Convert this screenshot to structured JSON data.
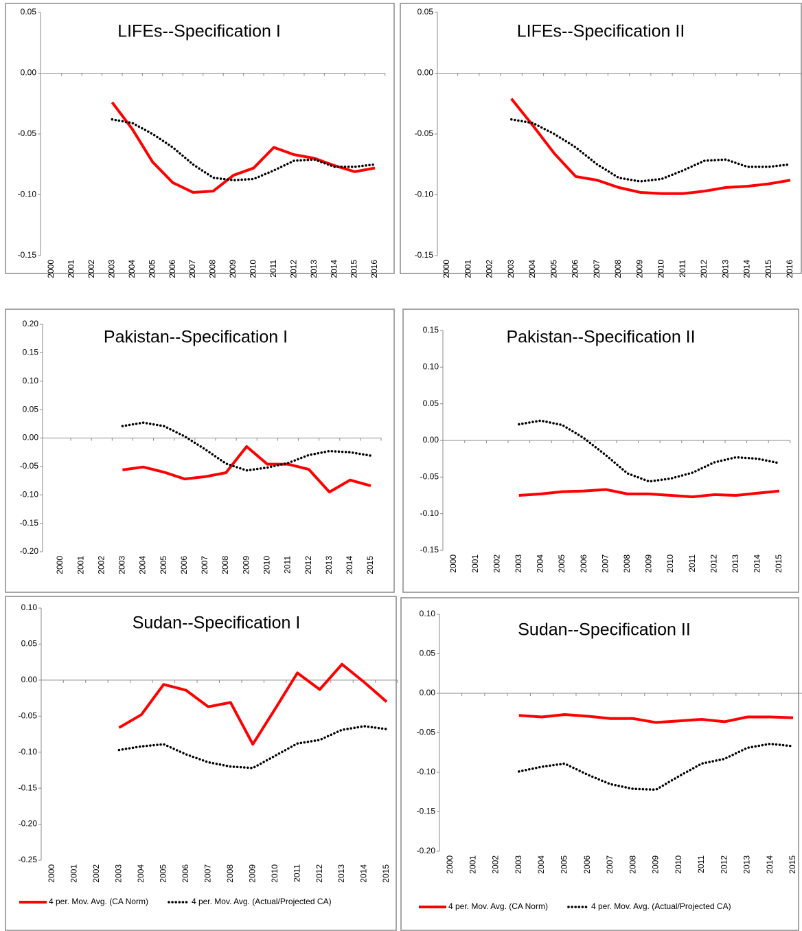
{
  "chart_data": [
    {
      "type": "line",
      "title": "LIFEs--Specification I",
      "categories": [
        "2000",
        "2001",
        "2002",
        "2003",
        "2004",
        "2005",
        "2006",
        "2007",
        "2008",
        "2009",
        "2010",
        "2011",
        "2012",
        "2013",
        "2014",
        "2015",
        "2016"
      ],
      "ylim": [
        -0.15,
        0.05
      ],
      "yticks": [
        {
          "value": -0.15,
          "label": "-0.15"
        },
        {
          "value": -0.1,
          "label": "-0.10"
        },
        {
          "value": -0.05,
          "label": "-0.05"
        },
        {
          "value": 0,
          "label": "0.00"
        },
        {
          "value": 0.05,
          "label": "0.05"
        }
      ],
      "series": [
        {
          "name": "4 per. Mov. Avg. (CA Norm)",
          "color": "#ff0000",
          "values": [
            null,
            null,
            null,
            -0.024,
            -0.046,
            -0.073,
            -0.09,
            -0.098,
            -0.097,
            -0.084,
            -0.078,
            -0.061,
            -0.067,
            -0.07,
            -0.076,
            -0.081,
            -0.078
          ]
        },
        {
          "name": "4 per. Mov. Avg. (Actual/Projected CA)",
          "color": "#000000",
          "values": [
            null,
            null,
            null,
            -0.038,
            -0.041,
            -0.05,
            -0.061,
            -0.075,
            -0.086,
            -0.088,
            -0.087,
            -0.08,
            -0.072,
            -0.071,
            -0.077,
            -0.077,
            -0.075
          ]
        }
      ]
    },
    {
      "type": "line",
      "title": "LIFEs--Specification II",
      "categories": [
        "2000",
        "2001",
        "2002",
        "2003",
        "2004",
        "2005",
        "2006",
        "2007",
        "2008",
        "2009",
        "2010",
        "2011",
        "2012",
        "2013",
        "2014",
        "2015",
        "2016"
      ],
      "ylim": [
        -0.15,
        0.05
      ],
      "yticks": [
        {
          "value": -0.15,
          "label": "-0.15"
        },
        {
          "value": -0.1,
          "label": "-0.10"
        },
        {
          "value": -0.05,
          "label": "-0.05"
        },
        {
          "value": 0,
          "label": "0.00"
        },
        {
          "value": 0.05,
          "label": "0.05"
        }
      ],
      "series": [
        {
          "name": "4 per. Mov. Avg. (CA Norm)",
          "color": "#ff0000",
          "values": [
            null,
            null,
            null,
            -0.021,
            -0.043,
            -0.066,
            -0.085,
            -0.088,
            -0.094,
            -0.098,
            -0.099,
            -0.099,
            -0.097,
            -0.094,
            -0.093,
            -0.091,
            -0.088
          ]
        },
        {
          "name": "4 per. Mov. Avg. (Actual/Projected CA)",
          "color": "#000000",
          "values": [
            null,
            null,
            null,
            -0.038,
            -0.041,
            -0.05,
            -0.061,
            -0.075,
            -0.086,
            -0.089,
            -0.087,
            -0.08,
            -0.072,
            -0.071,
            -0.077,
            -0.077,
            -0.075
          ]
        }
      ]
    },
    {
      "type": "line",
      "title": "Pakistan--Specification I",
      "categories": [
        "2000",
        "2001",
        "2002",
        "2003",
        "2004",
        "2005",
        "2006",
        "2007",
        "2008",
        "2009",
        "2010",
        "2011",
        "2012",
        "2013",
        "2014",
        "2015"
      ],
      "ylim": [
        -0.2,
        0.2
      ],
      "yticks": [
        {
          "value": -0.2,
          "label": "-0.20"
        },
        {
          "value": -0.15,
          "label": "-0.15"
        },
        {
          "value": -0.1,
          "label": "-0.10"
        },
        {
          "value": -0.05,
          "label": "-0.05"
        },
        {
          "value": 0,
          "label": "0.00"
        },
        {
          "value": 0.05,
          "label": "0.05"
        },
        {
          "value": 0.1,
          "label": "0.10"
        },
        {
          "value": 0.15,
          "label": "0.15"
        },
        {
          "value": 0.2,
          "label": "0.20"
        }
      ],
      "series": [
        {
          "name": "4 per. Mov. Avg. (CA Norm)",
          "color": "#ff0000",
          "values": [
            null,
            null,
            null,
            -0.056,
            -0.051,
            -0.06,
            -0.072,
            -0.068,
            -0.061,
            -0.015,
            -0.046,
            -0.046,
            -0.055,
            -0.095,
            -0.074,
            -0.084
          ]
        },
        {
          "name": "4 per. Mov. Avg. (Actual/Projected CA)",
          "color": "#000000",
          "values": [
            null,
            null,
            null,
            0.021,
            0.027,
            0.021,
            0.003,
            -0.02,
            -0.045,
            -0.057,
            -0.052,
            -0.044,
            -0.03,
            -0.023,
            -0.025,
            -0.031
          ]
        }
      ]
    },
    {
      "type": "line",
      "title": "Pakistan--Specification II",
      "categories": [
        "2000",
        "2001",
        "2002",
        "2003",
        "2004",
        "2005",
        "2006",
        "2007",
        "2008",
        "2009",
        "2010",
        "2011",
        "2012",
        "2013",
        "2014",
        "2015"
      ],
      "ylim": [
        -0.15,
        0.15
      ],
      "yticks": [
        {
          "value": -0.15,
          "label": "-0.15"
        },
        {
          "value": -0.1,
          "label": "-0.10"
        },
        {
          "value": -0.05,
          "label": "-0.05"
        },
        {
          "value": 0,
          "label": "0.00"
        },
        {
          "value": 0.05,
          "label": "0.05"
        },
        {
          "value": 0.1,
          "label": "0.10"
        },
        {
          "value": 0.15,
          "label": "0.15"
        }
      ],
      "series": [
        {
          "name": "4 per. Mov. Avg. (CA Norm)",
          "color": "#ff0000",
          "values": [
            null,
            null,
            null,
            -0.075,
            -0.073,
            -0.07,
            -0.069,
            -0.067,
            -0.073,
            -0.073,
            -0.075,
            -0.077,
            -0.074,
            -0.075,
            -0.072,
            -0.069
          ]
        },
        {
          "name": "4 per. Mov. Avg. (Actual/Projected CA)",
          "color": "#000000",
          "values": [
            null,
            null,
            null,
            0.022,
            0.027,
            0.021,
            0.003,
            -0.02,
            -0.045,
            -0.056,
            -0.052,
            -0.044,
            -0.03,
            -0.023,
            -0.025,
            -0.031
          ]
        }
      ]
    },
    {
      "type": "line",
      "title": "Sudan--Specification I",
      "categories": [
        "2000",
        "2001",
        "2002",
        "2003",
        "2004",
        "2005",
        "2006",
        "2007",
        "2008",
        "2009",
        "2010",
        "2011",
        "2012",
        "2013",
        "2014",
        "2015"
      ],
      "ylim": [
        -0.25,
        0.1
      ],
      "yticks": [
        {
          "value": -0.25,
          "label": "-0.25"
        },
        {
          "value": -0.2,
          "label": "-0.20"
        },
        {
          "value": -0.15,
          "label": "-0.15"
        },
        {
          "value": -0.1,
          "label": "-0.10"
        },
        {
          "value": -0.05,
          "label": "-0.05"
        },
        {
          "value": 0,
          "label": "0.00"
        },
        {
          "value": 0.05,
          "label": "0.05"
        },
        {
          "value": 0.1,
          "label": "0.10"
        }
      ],
      "legend": true,
      "series": [
        {
          "name": "4 per. Mov. Avg. (CA Norm)",
          "color": "#ff0000",
          "values": [
            null,
            null,
            null,
            -0.066,
            -0.048,
            -0.006,
            -0.014,
            -0.037,
            -0.031,
            -0.089,
            -0.04,
            0.01,
            -0.013,
            0.022,
            -0.003,
            -0.03
          ]
        },
        {
          "name": "4 per. Mov. Avg. (Actual/Projected CA)",
          "color": "#000000",
          "values": [
            null,
            null,
            null,
            -0.097,
            -0.092,
            -0.089,
            -0.103,
            -0.114,
            -0.12,
            -0.122,
            -0.105,
            -0.088,
            -0.083,
            -0.069,
            -0.064,
            -0.068
          ]
        }
      ]
    },
    {
      "type": "line",
      "title": "Sudan--Specification II",
      "categories": [
        "2000",
        "2001",
        "2002",
        "2003",
        "2004",
        "2005",
        "2006",
        "2007",
        "2008",
        "2009",
        "2010",
        "2011",
        "2012",
        "2013",
        "2014",
        "2015"
      ],
      "ylim": [
        -0.2,
        0.1
      ],
      "yticks": [
        {
          "value": -0.2,
          "label": "-0.20"
        },
        {
          "value": -0.15,
          "label": "-0.15"
        },
        {
          "value": -0.1,
          "label": "-0.10"
        },
        {
          "value": -0.05,
          "label": "-0.05"
        },
        {
          "value": 0,
          "label": "0.00"
        },
        {
          "value": 0.05,
          "label": "0.05"
        },
        {
          "value": 0.1,
          "label": "0.10"
        }
      ],
      "legend": true,
      "series": [
        {
          "name": "4 per. Mov. Avg. (CA Norm)",
          "color": "#ff0000",
          "values": [
            null,
            null,
            null,
            -0.028,
            -0.03,
            -0.027,
            -0.029,
            -0.032,
            -0.032,
            -0.037,
            -0.035,
            -0.033,
            -0.036,
            -0.03,
            -0.03,
            -0.031
          ]
        },
        {
          "name": "4 per. Mov. Avg. (Actual/Projected CA)",
          "color": "#000000",
          "values": [
            null,
            null,
            null,
            -0.099,
            -0.093,
            -0.089,
            -0.103,
            -0.115,
            -0.121,
            -0.122,
            -0.105,
            -0.089,
            -0.083,
            -0.069,
            -0.064,
            -0.067
          ]
        }
      ]
    }
  ]
}
